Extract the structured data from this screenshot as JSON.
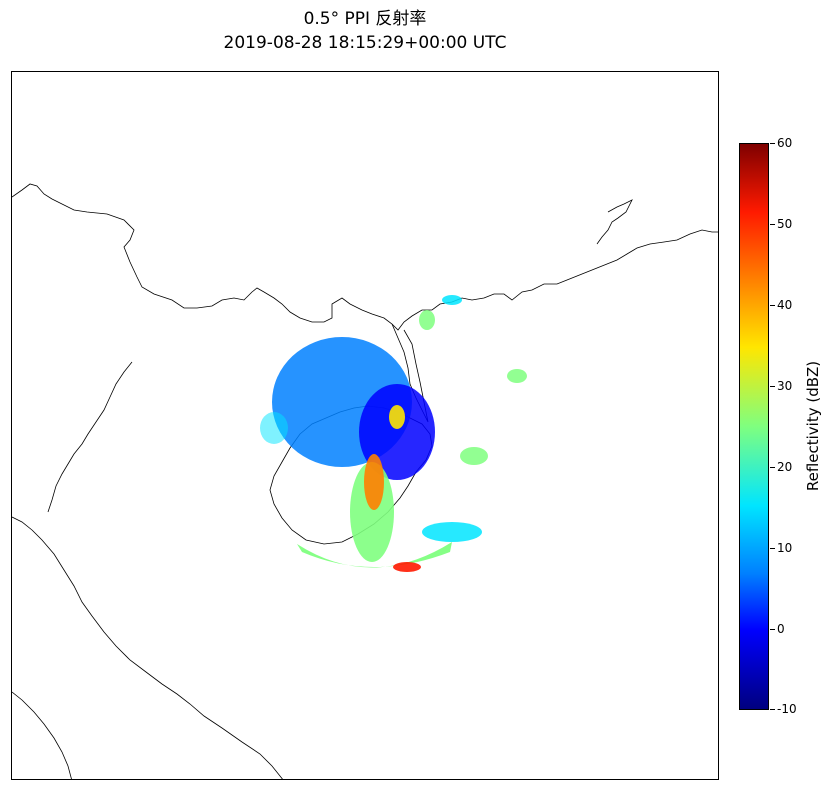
{
  "title": {
    "line1": "0.5° PPI 反射率",
    "line2": "2019-08-28 18:15:29+00:00 UTC"
  },
  "colorbar": {
    "label": "Reflectivity (dBZ)",
    "ticks": [
      "60",
      "50",
      "40",
      "30",
      "20",
      "10",
      "0",
      "-10"
    ],
    "min": -10,
    "max": 60,
    "colormap": [
      "#00007f",
      "#0000ff",
      "#0080ff",
      "#00e5ff",
      "#7fff7f",
      "#ffe600",
      "#ff8000",
      "#ff1a00",
      "#7f0000"
    ]
  },
  "map": {
    "coastline_color": "#000000",
    "background": "#ffffff"
  }
}
